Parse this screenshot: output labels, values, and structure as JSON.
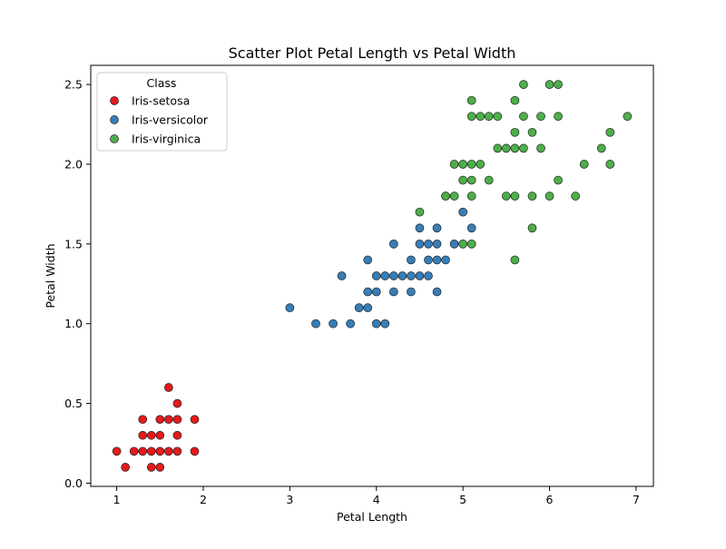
{
  "chart_data": {
    "type": "scatter",
    "title": "Scatter Plot Petal Length vs Petal Width",
    "xlabel": "Petal Length",
    "ylabel": "Petal Width",
    "xlim": [
      0.7,
      7.2
    ],
    "ylim": [
      -0.02,
      2.62
    ],
    "xticks": [
      1,
      2,
      3,
      4,
      5,
      6,
      7
    ],
    "yticks": [
      0.0,
      0.5,
      1.0,
      1.5,
      2.0,
      2.5
    ],
    "xtick_labels": [
      "1",
      "2",
      "3",
      "4",
      "5",
      "6",
      "7"
    ],
    "ytick_labels": [
      "0.0",
      "0.5",
      "1.0",
      "1.5",
      "2.0",
      "2.5"
    ],
    "grid": false,
    "legend": {
      "title": "Class",
      "placement": "upper-left"
    },
    "marker_edge_color": "#222222",
    "series": [
      {
        "name": "Iris-setosa",
        "color": "#e41a1c",
        "points": [
          [
            1.0,
            0.2
          ],
          [
            1.1,
            0.1
          ],
          [
            1.2,
            0.2
          ],
          [
            1.3,
            0.2
          ],
          [
            1.3,
            0.3
          ],
          [
            1.3,
            0.4
          ],
          [
            1.4,
            0.1
          ],
          [
            1.4,
            0.2
          ],
          [
            1.4,
            0.3
          ],
          [
            1.5,
            0.1
          ],
          [
            1.5,
            0.2
          ],
          [
            1.5,
            0.3
          ],
          [
            1.5,
            0.4
          ],
          [
            1.6,
            0.2
          ],
          [
            1.6,
            0.4
          ],
          [
            1.6,
            0.6
          ],
          [
            1.7,
            0.2
          ],
          [
            1.7,
            0.3
          ],
          [
            1.7,
            0.4
          ],
          [
            1.7,
            0.5
          ],
          [
            1.9,
            0.2
          ],
          [
            1.9,
            0.4
          ]
        ]
      },
      {
        "name": "Iris-versicolor",
        "color": "#377eb8",
        "points": [
          [
            3.0,
            1.1
          ],
          [
            3.3,
            1.0
          ],
          [
            3.5,
            1.0
          ],
          [
            3.6,
            1.3
          ],
          [
            3.7,
            1.0
          ],
          [
            3.8,
            1.1
          ],
          [
            3.9,
            1.1
          ],
          [
            3.9,
            1.2
          ],
          [
            3.9,
            1.4
          ],
          [
            4.0,
            1.0
          ],
          [
            4.0,
            1.2
          ],
          [
            4.0,
            1.3
          ],
          [
            4.1,
            1.0
          ],
          [
            4.1,
            1.3
          ],
          [
            4.2,
            1.2
          ],
          [
            4.2,
            1.3
          ],
          [
            4.2,
            1.5
          ],
          [
            4.3,
            1.3
          ],
          [
            4.4,
            1.2
          ],
          [
            4.4,
            1.3
          ],
          [
            4.4,
            1.4
          ],
          [
            4.5,
            1.3
          ],
          [
            4.5,
            1.5
          ],
          [
            4.5,
            1.6
          ],
          [
            4.6,
            1.3
          ],
          [
            4.6,
            1.4
          ],
          [
            4.6,
            1.5
          ],
          [
            4.7,
            1.2
          ],
          [
            4.7,
            1.4
          ],
          [
            4.7,
            1.5
          ],
          [
            4.7,
            1.6
          ],
          [
            4.8,
            1.4
          ],
          [
            4.8,
            1.8
          ],
          [
            4.9,
            1.5
          ],
          [
            5.0,
            1.7
          ],
          [
            5.1,
            1.6
          ]
        ]
      },
      {
        "name": "Iris-virginica",
        "color": "#4daf4a",
        "points": [
          [
            4.5,
            1.7
          ],
          [
            4.8,
            1.8
          ],
          [
            4.9,
            1.8
          ],
          [
            4.9,
            2.0
          ],
          [
            5.0,
            1.5
          ],
          [
            5.0,
            1.9
          ],
          [
            5.0,
            2.0
          ],
          [
            5.1,
            1.5
          ],
          [
            5.1,
            1.8
          ],
          [
            5.1,
            1.9
          ],
          [
            5.1,
            2.0
          ],
          [
            5.1,
            2.3
          ],
          [
            5.1,
            2.4
          ],
          [
            5.2,
            2.0
          ],
          [
            5.2,
            2.3
          ],
          [
            5.3,
            1.9
          ],
          [
            5.3,
            2.3
          ],
          [
            5.4,
            2.1
          ],
          [
            5.4,
            2.3
          ],
          [
            5.5,
            1.8
          ],
          [
            5.5,
            2.1
          ],
          [
            5.6,
            1.4
          ],
          [
            5.6,
            1.8
          ],
          [
            5.6,
            2.1
          ],
          [
            5.6,
            2.2
          ],
          [
            5.6,
            2.4
          ],
          [
            5.7,
            2.1
          ],
          [
            5.7,
            2.3
          ],
          [
            5.7,
            2.5
          ],
          [
            5.8,
            1.6
          ],
          [
            5.8,
            1.8
          ],
          [
            5.8,
            2.2
          ],
          [
            5.9,
            2.1
          ],
          [
            5.9,
            2.3
          ],
          [
            6.0,
            1.8
          ],
          [
            6.0,
            2.5
          ],
          [
            6.1,
            1.9
          ],
          [
            6.1,
            2.3
          ],
          [
            6.1,
            2.5
          ],
          [
            6.3,
            1.8
          ],
          [
            6.4,
            2.0
          ],
          [
            6.6,
            2.1
          ],
          [
            6.7,
            2.0
          ],
          [
            6.7,
            2.2
          ],
          [
            6.9,
            2.3
          ]
        ]
      }
    ]
  }
}
